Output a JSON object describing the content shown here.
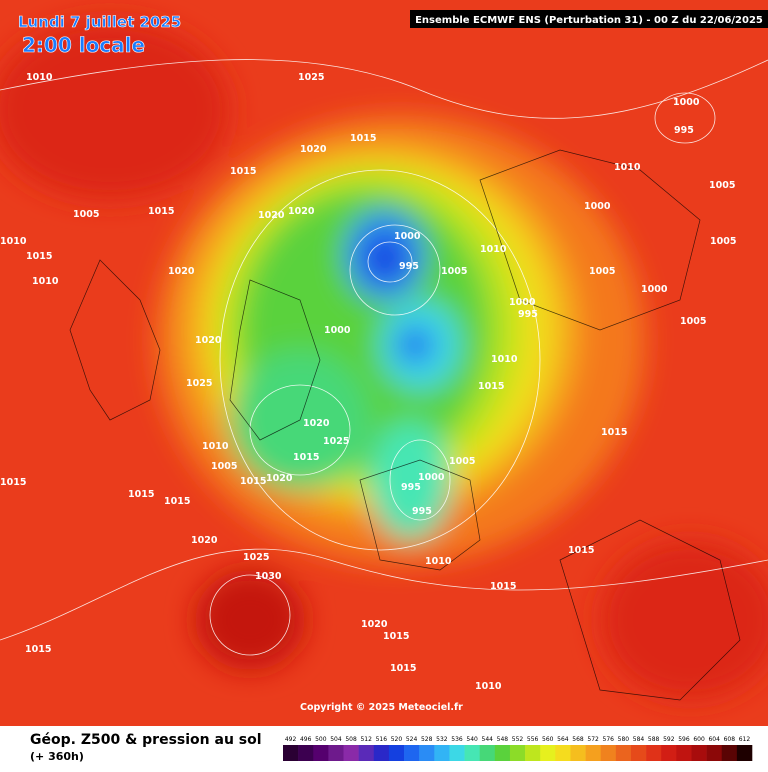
{
  "header": {
    "date": "Lundi 7 juillet 2025",
    "time": "2:00 locale",
    "model": "Ensemble ECMWF ENS  (Perturbation 31)  -  00 Z du 22/06/2025"
  },
  "map": {
    "copyright": "Copyright © 2025 Meteociel.fr",
    "isobar_labels": [
      1010,
      1025,
      1015,
      1020,
      1015,
      1020,
      1020,
      1000,
      995,
      1005,
      1010,
      1000,
      995,
      1000,
      1010,
      1015,
      1025,
      1020,
      1010,
      1005,
      1015,
      1020,
      1015,
      1025,
      1020,
      1005,
      1000,
      995,
      995,
      1010,
      1015,
      1015,
      1020,
      1025,
      1030,
      1015,
      1015,
      1020,
      1015,
      1015,
      1010,
      1015,
      1015,
      1005,
      1000,
      1010,
      1000,
      995,
      1005,
      1005,
      1000,
      1005,
      1015,
      1010,
      1015,
      1010,
      1020,
      1015,
      1005
    ]
  },
  "legend": {
    "title": "Géop. Z500 & pression au sol",
    "subtitle": "(+ 360h)",
    "levels": [
      492,
      496,
      500,
      504,
      508,
      512,
      516,
      520,
      524,
      528,
      532,
      536,
      540,
      544,
      548,
      552,
      556,
      560,
      564,
      568,
      572,
      576,
      580,
      584,
      588,
      592,
      596,
      600,
      604,
      608,
      612
    ],
    "colors": [
      "#2a0033",
      "#3c0050",
      "#55006e",
      "#6e1a8c",
      "#8a2aa8",
      "#5a2ab8",
      "#2a28c8",
      "#1440e0",
      "#1e66f0",
      "#2a8cf5",
      "#32b4f5",
      "#3cd8e6",
      "#46e6b4",
      "#46d878",
      "#5ad23c",
      "#8cdc28",
      "#bee61e",
      "#e6f01e",
      "#f5dc1e",
      "#f5be1e",
      "#f5a01e",
      "#f0821e",
      "#eb641e",
      "#e64a1a",
      "#e03218",
      "#d21e14",
      "#c01410",
      "#a80c0c",
      "#8c0808",
      "#5a0404",
      "#1e0000"
    ]
  }
}
